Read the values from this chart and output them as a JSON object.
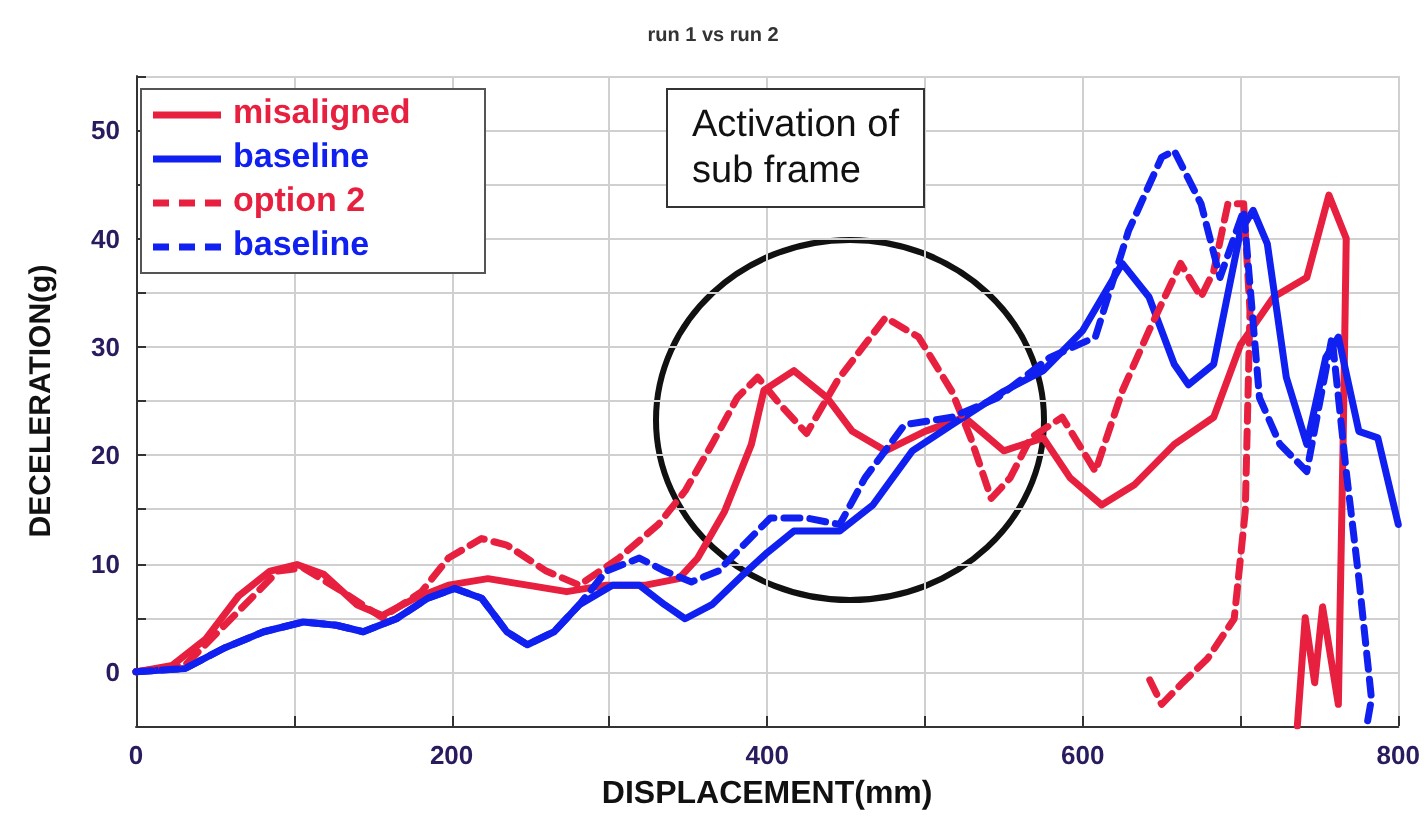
{
  "chart_data": {
    "type": "line",
    "title": "run 1 vs run 2",
    "xlabel": "DISPLACEMENT(mm)",
    "ylabel": "DECELERATION(g)",
    "annotations": [
      "Activation of sub frame"
    ],
    "xlim": [
      0,
      800
    ],
    "ylim": [
      -5,
      55
    ],
    "xticks": [
      0,
      {
        "value": 100,
        "label": null
      },
      200,
      {
        "value": 300,
        "label": null
      },
      400,
      {
        "value": 500,
        "label": null
      },
      600,
      {
        "value": 700,
        "label": null
      },
      800
    ],
    "yticks": [
      {
        "value": -5,
        "label": null
      },
      0,
      {
        "value": 5,
        "label": null
      },
      10,
      {
        "value": 15,
        "label": null
      },
      20,
      {
        "value": 25,
        "label": null
      },
      30,
      {
        "value": 35,
        "label": null
      },
      40,
      {
        "value": 45,
        "label": null
      },
      50,
      {
        "value": 55,
        "label": null
      }
    ],
    "grid": true,
    "legend": "top left",
    "marker": "none",
    "series": [
      {
        "name": "misaligned",
        "color": "#e8203f",
        "line_style": "solid",
        "x": [
          0,
          23,
          44,
          65,
          85,
          102,
          119,
          140,
          156,
          177,
          198,
          223,
          248,
          273,
          298,
          323,
          344,
          356,
          373,
          390,
          398,
          417,
          438,
          454,
          475,
          500,
          525,
          550,
          575,
          592,
          612,
          633,
          658,
          683,
          700,
          721,
          742,
          756,
          767,
          765,
          762,
          752,
          747,
          741,
          736
        ],
        "values": [
          0,
          0.6,
          3,
          7,
          9.3,
          9.9,
          9,
          6.2,
          5.2,
          6.8,
          8,
          8.6,
          8,
          7.4,
          8,
          8,
          8.6,
          10.5,
          14.8,
          21,
          26,
          27.8,
          25.3,
          22.2,
          20.4,
          22.2,
          23.5,
          20.4,
          21.6,
          17.9,
          15.4,
          17.3,
          21,
          23.5,
          30.2,
          34.6,
          36.4,
          44,
          40,
          21,
          -3,
          6,
          -1,
          5,
          -5
        ]
      },
      {
        "name": "baseline",
        "color": "#1020f0",
        "line_style": "solid",
        "x": [
          0,
          31,
          56,
          81,
          106,
          127,
          144,
          165,
          185,
          202,
          219,
          235,
          248,
          265,
          281,
          302,
          319,
          335,
          348,
          365,
          385,
          400,
          417,
          446,
          467,
          492,
          517,
          550,
          575,
          600,
          625,
          642,
          658,
          667,
          683,
          700,
          708,
          717,
          729,
          742,
          754,
          762,
          775,
          787,
          800
        ],
        "values": [
          0,
          0.3,
          2.2,
          3.7,
          4.6,
          4.3,
          3.7,
          4.9,
          6.8,
          7.7,
          6.8,
          3.7,
          2.5,
          3.7,
          6.2,
          8,
          8,
          6.2,
          4.9,
          6.2,
          9,
          11,
          13,
          13,
          15.4,
          20.4,
          22.8,
          25.9,
          27.8,
          31.5,
          37.7,
          34.6,
          28.4,
          26.5,
          28.4,
          40.7,
          42.6,
          39.5,
          27.2,
          21,
          29,
          30.9,
          22.2,
          21.6,
          13.6
        ]
      },
      {
        "name": "option 2",
        "color": "#e8203f",
        "line_style": "dashed",
        "x": [
          0,
          31,
          65,
          90,
          106,
          131,
          156,
          181,
          198,
          219,
          235,
          260,
          281,
          306,
          331,
          348,
          365,
          381,
          394,
          408,
          425,
          445,
          475,
          496,
          517,
          529,
          542,
          554,
          567,
          587,
          608,
          625,
          642,
          662,
          675,
          683,
          692,
          702,
          706,
          703,
          696,
          679,
          662,
          650,
          640
        ],
        "values": [
          0,
          0.6,
          5.6,
          9.3,
          9.6,
          7.4,
          5,
          7.4,
          10.5,
          12.3,
          11.7,
          9.3,
          8,
          10.5,
          13.6,
          16.7,
          21,
          25.3,
          27.2,
          24.7,
          22,
          27,
          32.7,
          30.9,
          25.9,
          21.6,
          16,
          17.9,
          21.6,
          23.5,
          18.5,
          25.9,
          31.5,
          37.7,
          34.6,
          37,
          43.2,
          43.2,
          33.3,
          14.8,
          4.9,
          1.2,
          -1.2,
          -3,
          0
        ]
      },
      {
        "name": "baseline",
        "color": "#1020f0",
        "line_style": "dashed",
        "x": [
          0,
          31,
          56,
          81,
          106,
          127,
          144,
          165,
          185,
          202,
          219,
          235,
          248,
          265,
          281,
          298,
          319,
          335,
          352,
          369,
          385,
          402,
          425,
          446,
          462,
          487,
          517,
          546,
          579,
          608,
          629,
          650,
          658,
          675,
          687,
          702,
          712,
          725,
          742,
          758,
          767,
          775,
          783,
          780
        ],
        "values": [
          0,
          0.3,
          2.2,
          3.7,
          4.6,
          4.3,
          3.7,
          4.9,
          6.8,
          7.7,
          6.8,
          3.7,
          2.5,
          3.7,
          6.2,
          9.3,
          10.5,
          9.3,
          8.3,
          9.3,
          11.7,
          14.2,
          14.2,
          13.6,
          17.9,
          22.8,
          23.5,
          25.3,
          29,
          30.9,
          40.7,
          47.5,
          48.1,
          43.2,
          36.4,
          42.6,
          25.3,
          21,
          18.5,
          30.9,
          18.5,
          8.6,
          -2.5,
          -5
        ]
      }
    ]
  }
}
